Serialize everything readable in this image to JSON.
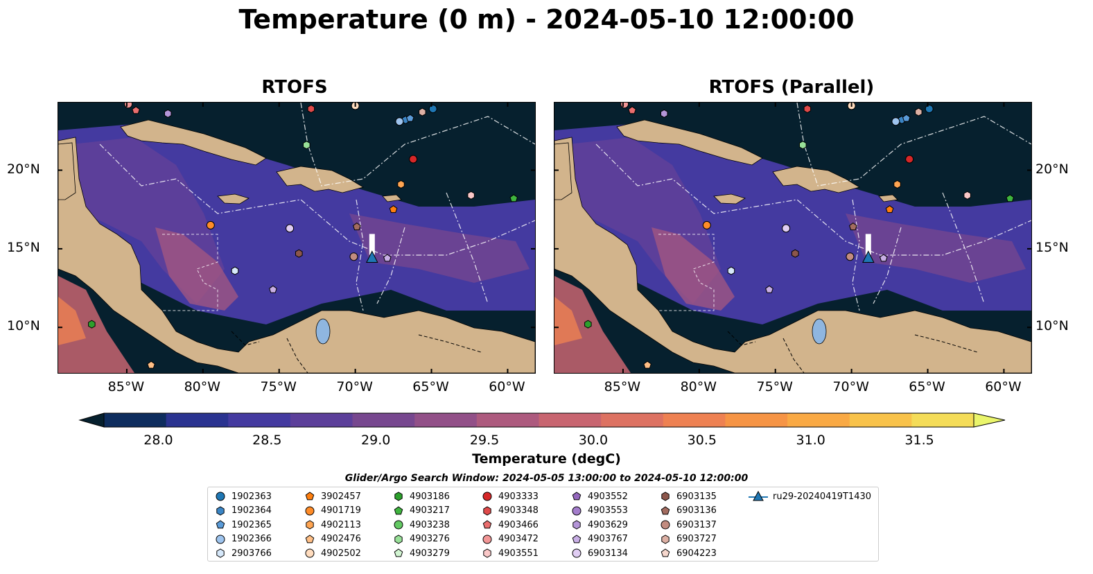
{
  "title": "Temperature (0 m) - 2024-05-10 12:00:00",
  "panels": [
    {
      "title": "RTOFS"
    },
    {
      "title": "RTOFS (Parallel)"
    }
  ],
  "axes": {
    "lon_ticks": [
      "85°W",
      "80°W",
      "75°W",
      "70°W",
      "65°W",
      "60°W"
    ],
    "lat_ticks": [
      "20°N",
      "15°N",
      "10°N"
    ]
  },
  "colorbar": {
    "label": "Temperature (degC)",
    "ticks": [
      "28.0",
      "28.5",
      "29.0",
      "29.5",
      "30.0",
      "30.5",
      "31.0",
      "31.5"
    ],
    "colors": [
      "#06202e",
      "#0e2d5e",
      "#2a3390",
      "#443aa0",
      "#5c3f9a",
      "#77478f",
      "#925088",
      "#ad5a7e",
      "#c86570",
      "#dd7262",
      "#ee8152",
      "#f69445",
      "#f9a944",
      "#f8c24a",
      "#f4dc58",
      "#eaf56b"
    ],
    "extend": "both"
  },
  "search_window": "Glider/Argo Search Window: 2024-05-05 13:00:00 to 2024-05-10 12:00:00",
  "legend": [
    {
      "label": "1902363",
      "marker": "circle",
      "color": "#1f77b4"
    },
    {
      "label": "1902364",
      "marker": "hexagon",
      "color": "#3a85c5"
    },
    {
      "label": "1902365",
      "marker": "pentagon",
      "color": "#5a9bd8"
    },
    {
      "label": "1902366",
      "marker": "circle",
      "color": "#9ec4ee"
    },
    {
      "label": "2903766",
      "marker": "hexagon",
      "color": "#d6e8fa"
    },
    {
      "label": "3902457",
      "marker": "pentagon",
      "color": "#ff7f0e"
    },
    {
      "label": "4901719",
      "marker": "circle",
      "color": "#ff8c28"
    },
    {
      "label": "4902113",
      "marker": "hexagon",
      "color": "#ffa552"
    },
    {
      "label": "4902476",
      "marker": "pentagon",
      "color": "#ffbf86"
    },
    {
      "label": "4902502",
      "marker": "circle",
      "color": "#ffdcbe"
    },
    {
      "label": "4903186",
      "marker": "hexagon",
      "color": "#2ca02c"
    },
    {
      "label": "4903217",
      "marker": "pentagon",
      "color": "#3fb43f"
    },
    {
      "label": "4903238",
      "marker": "circle",
      "color": "#63c963"
    },
    {
      "label": "4903276",
      "marker": "hexagon",
      "color": "#98e098"
    },
    {
      "label": "4903279",
      "marker": "pentagon",
      "color": "#d2f5d2"
    },
    {
      "label": "4903333",
      "marker": "circle",
      "color": "#d62728"
    },
    {
      "label": "4903348",
      "marker": "hexagon",
      "color": "#e04a4a"
    },
    {
      "label": "4903466",
      "marker": "pentagon",
      "color": "#ea6e6e"
    },
    {
      "label": "4903472",
      "marker": "circle",
      "color": "#f29696"
    },
    {
      "label": "4903551",
      "marker": "hexagon",
      "color": "#fac8c8"
    },
    {
      "label": "4903552",
      "marker": "pentagon",
      "color": "#9467bd"
    },
    {
      "label": "4903553",
      "marker": "circle",
      "color": "#a47dcc"
    },
    {
      "label": "4903629",
      "marker": "hexagon",
      "color": "#b495d8"
    },
    {
      "label": "4903767",
      "marker": "pentagon",
      "color": "#c8aee5"
    },
    {
      "label": "6903134",
      "marker": "circle",
      "color": "#e0cdf3"
    },
    {
      "label": "6903135",
      "marker": "hexagon",
      "color": "#8c564b"
    },
    {
      "label": "6903136",
      "marker": "pentagon",
      "color": "#a36c60"
    },
    {
      "label": "6903137",
      "marker": "circle",
      "color": "#c28c80"
    },
    {
      "label": "6903727",
      "marker": "hexagon",
      "color": "#ddb0a4"
    },
    {
      "label": "6904223",
      "marker": "pentagon",
      "color": "#f5d6cc"
    },
    {
      "label": "ru29-20240419T1430",
      "marker": "triangle-line",
      "color": "#1f77b4"
    }
  ],
  "glider_track": {
    "label": "ru29-20240419T1430",
    "lon": -68.9,
    "lat": 14.4
  },
  "floats": [
    {
      "id": "1902363",
      "lon": -64.9,
      "lat": 23.9
    },
    {
      "id": "1902364",
      "lon": -66.7,
      "lat": 23.2
    },
    {
      "id": "1902365",
      "lon": -66.4,
      "lat": 23.3
    },
    {
      "id": "1902366",
      "lon": -67.1,
      "lat": 23.1
    },
    {
      "id": "2903766",
      "lon": -77.9,
      "lat": 13.6
    },
    {
      "id": "3902457",
      "lon": -67.5,
      "lat": 17.5
    },
    {
      "id": "4901719",
      "lon": -79.5,
      "lat": 16.5
    },
    {
      "id": "4902113",
      "lon": -67.0,
      "lat": 19.1
    },
    {
      "id": "4902476",
      "lon": -83.4,
      "lat": 7.6
    },
    {
      "id": "4902502",
      "lon": -70.0,
      "lat": 24.1
    },
    {
      "id": "4903186",
      "lon": -87.3,
      "lat": 10.2
    },
    {
      "id": "4903217",
      "lon": -59.6,
      "lat": 18.2
    },
    {
      "id": "4903276",
      "lon": -73.2,
      "lat": 21.6
    },
    {
      "id": "4903333",
      "lon": -66.2,
      "lat": 20.7
    },
    {
      "id": "4903348",
      "lon": -72.9,
      "lat": 23.9
    },
    {
      "id": "4903466",
      "lon": -84.4,
      "lat": 23.8
    },
    {
      "id": "4903472",
      "lon": -84.9,
      "lat": 24.2
    },
    {
      "id": "4903551",
      "lon": -62.4,
      "lat": 18.4
    },
    {
      "id": "4903629",
      "lon": -82.3,
      "lat": 23.6
    },
    {
      "id": "4903767",
      "lon": -67.9,
      "lat": 14.4
    },
    {
      "id": "4903767",
      "lon": -75.4,
      "lat": 12.4
    },
    {
      "id": "6903134",
      "lon": -74.3,
      "lat": 16.3
    },
    {
      "id": "6903135",
      "lon": -73.7,
      "lat": 14.7
    },
    {
      "id": "6903136",
      "lon": -69.9,
      "lat": 16.4
    },
    {
      "id": "6903137",
      "lon": -70.1,
      "lat": 14.5
    },
    {
      "id": "6903727",
      "lon": -65.6,
      "lat": 23.7
    }
  ]
}
